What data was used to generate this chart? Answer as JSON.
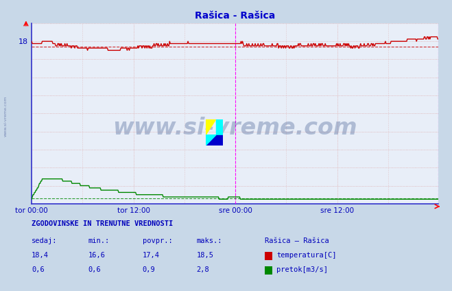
{
  "title": "Rašica - Rašica",
  "title_color": "#0000cc",
  "bg_color": "#c8d8e8",
  "plot_bg_color": "#e8eef8",
  "fig_size": [
    6.59,
    4.24
  ],
  "dpi": 100,
  "xlim": [
    0,
    575
  ],
  "ylim": [
    0,
    20
  ],
  "ytick_positions": [
    18
  ],
  "ytick_labels": [
    "18"
  ],
  "xlabel_ticks": [
    0,
    144,
    288,
    432,
    575
  ],
  "xlabel_labels": [
    "tor 00:00",
    "tor 12:00",
    "sre 00:00",
    "sre 12:00",
    ""
  ],
  "grid_color": "#ddaaaa",
  "border_color_left": "#3333cc",
  "border_color_bottom": "#3333cc",
  "magenta_line_x": 288,
  "magenta_line_x2": 575,
  "watermark_text": "www.si-vreme.com",
  "watermark_color": "#1a3a7a",
  "watermark_alpha": 0.28,
  "sidebar_text": "www.si-vreme.com",
  "temp_color": "#cc0000",
  "flow_color": "#008800",
  "temp_avg": 17.4,
  "flow_min": 0.6,
  "temp_min": 16.6,
  "temp_max": 18.5,
  "temp_current": 18.4,
  "flow_max": 2.8,
  "flow_avg": 0.9,
  "flow_current": 0.6,
  "legend_title": "Rašica – Rašica",
  "legend_temp": "temperatura[C]",
  "legend_flow": "pretok[m3/s]",
  "table_header": "ZGODOVINSKE IN TRENUTNE VREDNOSTI",
  "table_col1": "sedaj:",
  "table_col2": "min.:",
  "table_col3": "povpr.:",
  "table_col4": "maks.:"
}
